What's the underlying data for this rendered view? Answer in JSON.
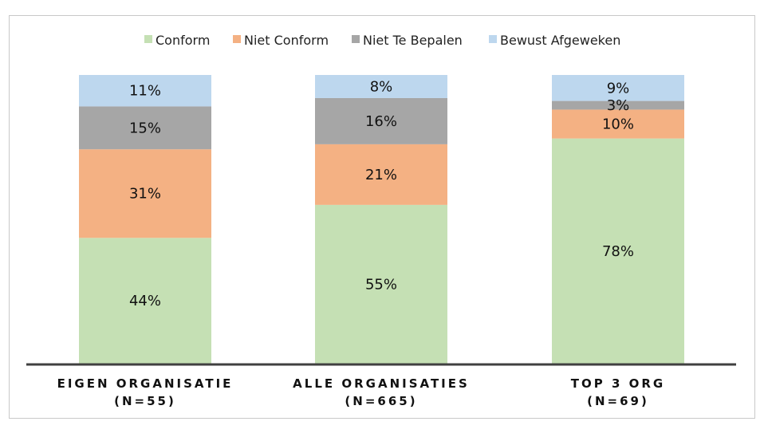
{
  "chart_data": {
    "type": "bar",
    "stacked": true,
    "categories": [
      [
        "EIGEN ORGANISATIE",
        "(N=55)"
      ],
      [
        "ALLE ORGANISATIES",
        "(N=665)"
      ],
      [
        "TOP 3 ORG",
        "(N=69)"
      ]
    ],
    "series": [
      {
        "name": "Conform",
        "color": "#c5e0b4",
        "values": [
          44,
          55,
          78
        ],
        "labels": [
          "44%",
          "55%",
          "78%"
        ]
      },
      {
        "name": "Niet Conform",
        "color": "#f4b183",
        "values": [
          31,
          21,
          10
        ],
        "labels": [
          "31%",
          "21%",
          "10%"
        ]
      },
      {
        "name": "Niet Te Bepalen",
        "color": "#a6a6a6",
        "values": [
          15,
          16,
          3
        ],
        "labels": [
          "15%",
          "16%",
          "3%"
        ]
      },
      {
        "name": "Bewust Afgeweken",
        "color": "#bdd7ee",
        "values": [
          11,
          8,
          9
        ],
        "labels": [
          "11%",
          "8%",
          "9%"
        ]
      }
    ],
    "ylim": [
      0,
      100
    ],
    "legend_position": "top",
    "grid": false
  }
}
